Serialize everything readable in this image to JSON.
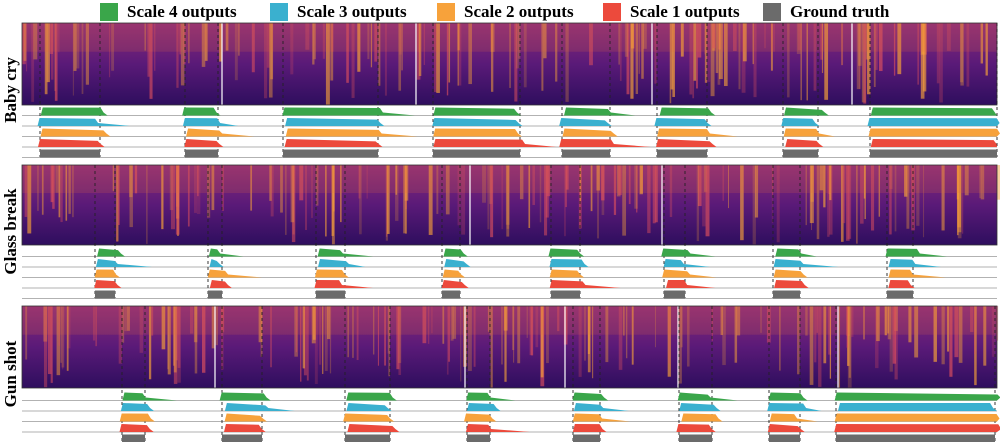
{
  "legend": {
    "items": [
      {
        "label": "Scale 4 outputs",
        "color": "#3aa64a"
      },
      {
        "label": "Scale 3 outputs",
        "color": "#3ab0cf"
      },
      {
        "label": "Scale 2 outputs",
        "color": "#f7a23b"
      },
      {
        "label": "Scale 1 outputs",
        "color": "#ec4a3c"
      },
      {
        "label": "Ground truth",
        "color": "#6b6b6b"
      }
    ]
  },
  "rows": [
    {
      "label": "Baby cry"
    },
    {
      "label": "Glass break"
    },
    {
      "label": "Gun shot"
    }
  ]
}
